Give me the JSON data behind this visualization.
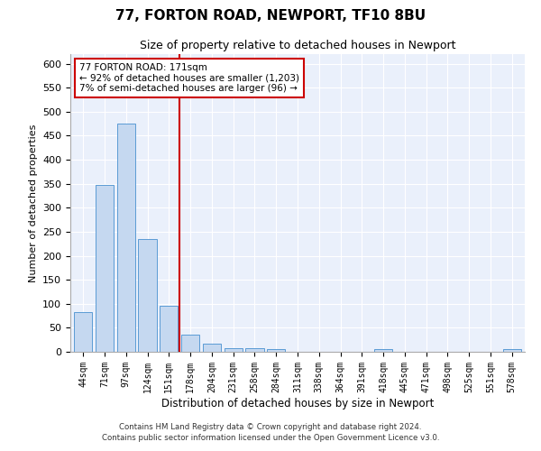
{
  "title1": "77, FORTON ROAD, NEWPORT, TF10 8BU",
  "title2": "Size of property relative to detached houses in Newport",
  "xlabel": "Distribution of detached houses by size in Newport",
  "ylabel": "Number of detached properties",
  "categories": [
    "44sqm",
    "71sqm",
    "97sqm",
    "124sqm",
    "151sqm",
    "178sqm",
    "204sqm",
    "231sqm",
    "258sqm",
    "284sqm",
    "311sqm",
    "338sqm",
    "364sqm",
    "391sqm",
    "418sqm",
    "445sqm",
    "471sqm",
    "498sqm",
    "525sqm",
    "551sqm",
    "578sqm"
  ],
  "values": [
    82,
    348,
    475,
    234,
    96,
    36,
    17,
    8,
    8,
    5,
    0,
    0,
    0,
    0,
    5,
    0,
    0,
    0,
    0,
    0,
    5
  ],
  "bar_color": "#c5d8f0",
  "bar_edge_color": "#5b9bd5",
  "annotation_text": "77 FORTON ROAD: 171sqm\n← 92% of detached houses are smaller (1,203)\n7% of semi-detached houses are larger (96) →",
  "annotation_box_color": "#ffffff",
  "annotation_box_edge": "#cc0000",
  "annotation_text_color": "#000000",
  "vline_color": "#cc0000",
  "footer1": "Contains HM Land Registry data © Crown copyright and database right 2024.",
  "footer2": "Contains public sector information licensed under the Open Government Licence v3.0.",
  "ylim": [
    0,
    620
  ],
  "yticks": [
    0,
    50,
    100,
    150,
    200,
    250,
    300,
    350,
    400,
    450,
    500,
    550,
    600
  ],
  "plot_bg_color": "#eaf0fb"
}
